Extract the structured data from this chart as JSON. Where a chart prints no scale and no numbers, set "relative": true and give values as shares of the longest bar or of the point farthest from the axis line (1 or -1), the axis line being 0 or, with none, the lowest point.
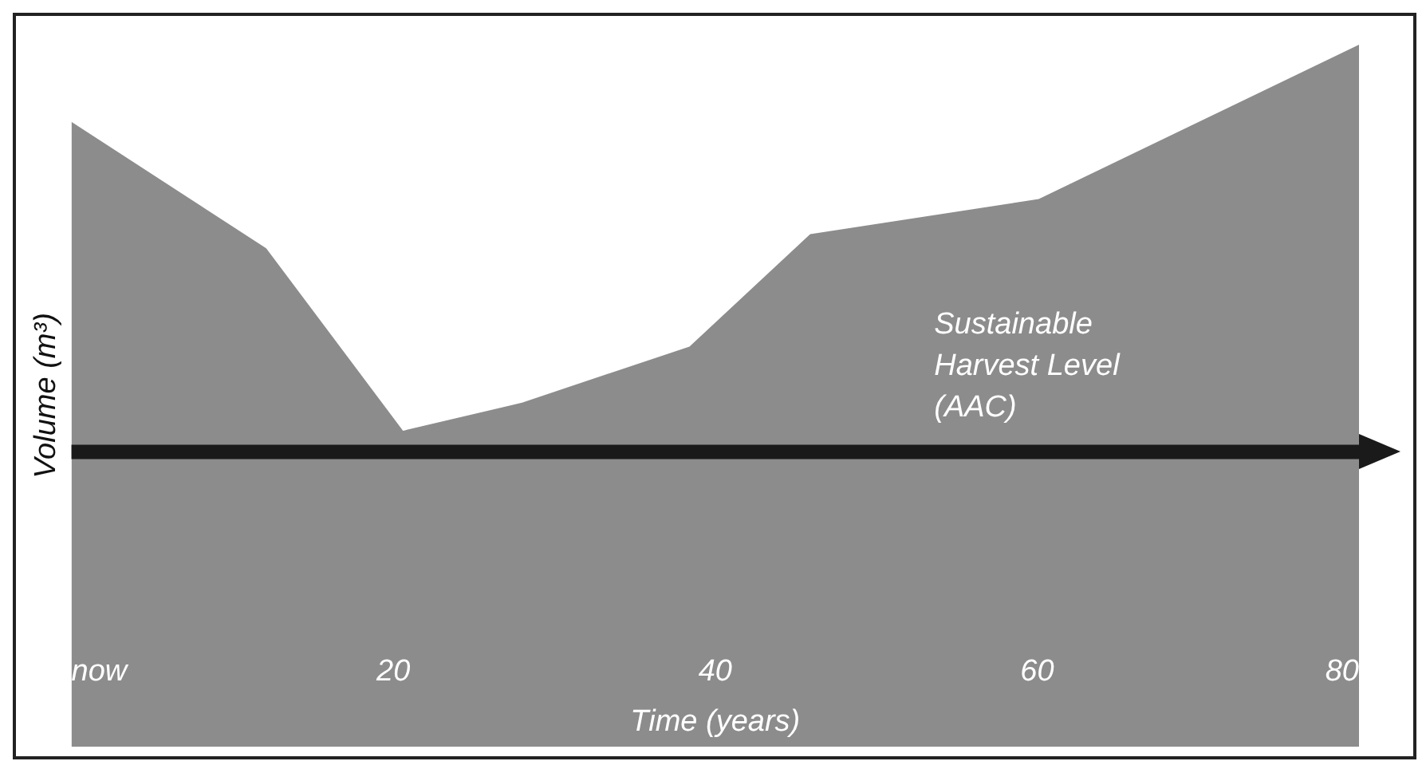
{
  "chart_data": {
    "type": "area",
    "xlabel": "Time (years)",
    "ylabel": "Volume (m³)",
    "relative": true,
    "x": [
      0,
      12.1,
      20.6,
      28,
      38.4,
      45.9,
      60.1,
      80
    ],
    "values": [
      0.89,
      0.71,
      0.45,
      0.49,
      0.57,
      0.73,
      0.78,
      1
    ],
    "color": "#8c8c8c",
    "xlim": [
      0,
      80
    ],
    "xticks": [
      {
        "value": 0,
        "label": "now"
      },
      20,
      40,
      60,
      80
    ],
    "ref_lines": [
      {
        "axis": "y",
        "value": 0.42,
        "label": "Sustainable Harvest Level (AAC)",
        "color": "#1a1a1a"
      }
    ],
    "grid": false,
    "legend": false
  }
}
